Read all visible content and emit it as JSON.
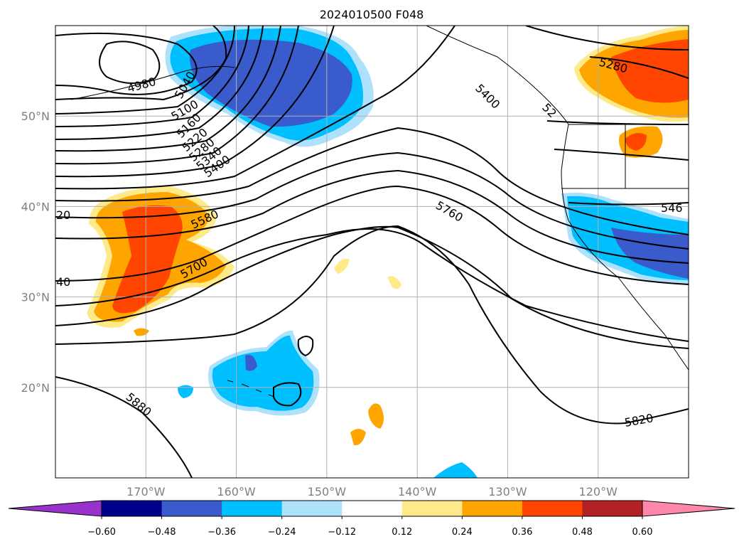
{
  "title": "2024010500 F048",
  "map": {
    "lon_range": [
      -180,
      -110
    ],
    "lat_range": [
      10,
      60
    ],
    "lon_ticks": [
      {
        "lon": -170,
        "label": "170°W"
      },
      {
        "lon": -160,
        "label": "160°W"
      },
      {
        "lon": -150,
        "label": "150°W"
      },
      {
        "lon": -140,
        "label": "140°W"
      },
      {
        "lon": -130,
        "label": "130°W"
      },
      {
        "lon": -120,
        "label": "120°W"
      }
    ],
    "lat_ticks": [
      {
        "lat": 50,
        "label": "50°N"
      },
      {
        "lat": 40,
        "label": "40°N"
      },
      {
        "lat": 30,
        "label": "30°N"
      },
      {
        "lat": 20,
        "label": "20°N"
      }
    ],
    "grid": true,
    "contour_labels": [
      {
        "text": "4980",
        "lon": -180.0,
        "lat": 0
      },
      {
        "text": "5040",
        "lon": -174.0,
        "lat": 0
      },
      {
        "text": "5100",
        "lon": -173.5,
        "lat": 0
      },
      {
        "text": "5160",
        "lon": -173.0,
        "lat": 0
      },
      {
        "text": "5220",
        "lon": -172.5,
        "lat": 0
      },
      {
        "text": "5280",
        "lon": -172.0,
        "lat": 0
      },
      {
        "text": "5340",
        "lon": -171.5,
        "lat": 0
      },
      {
        "text": "5400",
        "lon": -171.0,
        "lat": 0
      },
      {
        "text": "5580",
        "lon": -170.0,
        "lat": 0
      },
      {
        "text": "5700",
        "lon": -168.0,
        "lat": 0
      },
      {
        "text": "5760",
        "lon": -136.0,
        "lat": 0
      },
      {
        "text": "5400",
        "lon": -133.0,
        "lat": 0
      },
      {
        "text": "5280",
        "lon": -120.0,
        "lat": 0
      },
      {
        "text": "5820",
        "lon": -120.0,
        "lat": 0
      },
      {
        "text": "5880",
        "lon": -170.0,
        "lat": 0
      },
      {
        "text": "546",
        "lon": -112.0,
        "lat": 0
      },
      {
        "text": "20",
        "lon": -180.0,
        "lat": 0
      },
      {
        "text": "40",
        "lon": -180.0,
        "lat": 0
      },
      {
        "text": "52",
        "lon": -126.0,
        "lat": 0
      }
    ]
  },
  "colorbar": {
    "ticks": [
      "−0.60",
      "−0.48",
      "−0.36",
      "−0.24",
      "−0.12",
      "0.12",
      "0.24",
      "0.36",
      "0.48",
      "0.60"
    ],
    "colors": {
      "under": "#9932cc",
      "c1": "#00008b",
      "c2": "#3a5bcc",
      "c3": "#00bfff",
      "c4": "#aee1fb",
      "c5": "#ffffff",
      "c6": "#ffea8a",
      "c7": "#ffa500",
      "c8": "#ff4500",
      "c9": "#b22222",
      "over": "#ff88aa"
    }
  }
}
